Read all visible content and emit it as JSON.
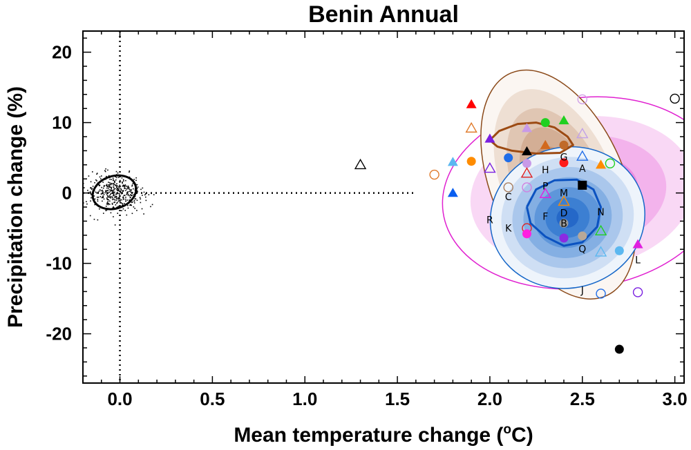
{
  "chart_data": {
    "type": "scatter",
    "title": "Benin Annual",
    "xlabel": "Mean temperature change (",
    "xlabel_sup": "o",
    "xlabel_tail": "C)",
    "ylabel": "Precipitation change (%)",
    "xlim": [
      -0.2,
      3.05
    ],
    "ylim": [
      -27,
      23
    ],
    "xticks": [
      0.0,
      0.5,
      1.0,
      1.5,
      2.0,
      2.5,
      3.0
    ],
    "xtick_labels": [
      "0.0",
      "0.5",
      "1.0",
      "1.5",
      "2.0",
      "2.5",
      "3.0"
    ],
    "yticks": [
      20,
      10,
      0,
      -10,
      -20
    ],
    "ytick_labels": [
      "20",
      "10",
      "0",
      "-10",
      "-20"
    ],
    "reference_lines": {
      "x": 0.0,
      "y": 0.0,
      "y_line_xmax": 1.6
    },
    "natural_variability": {
      "center": [
        -0.03,
        0.1
      ],
      "ellipse_semi_axes": [
        0.12,
        2.3
      ],
      "point_count": 420
    },
    "distributions": [
      {
        "name": "magenta",
        "center": [
          2.5,
          0.0
        ],
        "semi_axes": [
          0.76,
          13.5
        ],
        "tilt_deg": -8,
        "colors": [
          "#ffffff",
          "#f9d8f5",
          "#f3b3ec",
          "#ec8ce0",
          "#e468d4"
        ],
        "outline": "#e020d0"
      },
      {
        "name": "brown",
        "center": [
          2.37,
          1.2
        ],
        "semi_axes": [
          0.36,
          17.2
        ],
        "tilt_deg": -23,
        "colors": [
          "#fbf6f2",
          "#eedfd3",
          "#e0c6b3",
          "#d3ae95",
          "#c69779",
          "#b88060"
        ],
        "outline": "#8b4a1a"
      },
      {
        "name": "blue",
        "center": [
          2.42,
          -3.5
        ],
        "semi_axes": [
          0.42,
          10.0
        ],
        "tilt_deg": -14,
        "colors": [
          "#eef4fb",
          "#cfdff4",
          "#aac7ec",
          "#84afe3",
          "#5e96da",
          "#3c7fd2",
          "#2568c8"
        ],
        "outline": "#1566c8"
      }
    ],
    "contours": [
      {
        "name": "brown-core",
        "color": "#9c4a12",
        "points": [
          [
            2.0,
            7.5
          ],
          [
            2.05,
            8.8
          ],
          [
            2.15,
            9.8
          ],
          [
            2.25,
            10.0
          ],
          [
            2.35,
            9.3
          ],
          [
            2.42,
            8.0
          ],
          [
            2.45,
            6.8
          ],
          [
            2.38,
            5.7
          ],
          [
            2.25,
            5.6
          ],
          [
            2.12,
            6.0
          ],
          [
            2.04,
            6.6
          ],
          [
            2.0,
            7.5
          ]
        ]
      },
      {
        "name": "blue-core",
        "color": "#0b52c0",
        "points": [
          [
            2.2,
            -2.0
          ],
          [
            2.25,
            0.5
          ],
          [
            2.35,
            1.8
          ],
          [
            2.47,
            1.9
          ],
          [
            2.56,
            0.5
          ],
          [
            2.6,
            -2.0
          ],
          [
            2.58,
            -4.8
          ],
          [
            2.5,
            -7.0
          ],
          [
            2.4,
            -7.5
          ],
          [
            2.3,
            -6.2
          ],
          [
            2.22,
            -4.3
          ],
          [
            2.2,
            -2.0
          ]
        ]
      }
    ],
    "points": [
      {
        "x": 1.9,
        "y": 12.6,
        "shape": "triangle",
        "fill": true,
        "color": "#ff0000"
      },
      {
        "x": 1.9,
        "y": 9.2,
        "shape": "triangle",
        "fill": false,
        "color": "#e07a2a"
      },
      {
        "x": 2.0,
        "y": 7.7,
        "shape": "triangle",
        "fill": true,
        "color": "#7a1fe0"
      },
      {
        "x": 1.9,
        "y": 4.5,
        "shape": "circle",
        "fill": true,
        "color": "#ff8c00"
      },
      {
        "x": 1.8,
        "y": 4.4,
        "shape": "triangle",
        "fill": true,
        "color": "#5cb8f0"
      },
      {
        "x": 1.8,
        "y": 0.0,
        "shape": "triangle",
        "fill": true,
        "color": "#0a5ef0"
      },
      {
        "x": 1.7,
        "y": 2.6,
        "shape": "circle",
        "fill": false,
        "color": "#e07a2a"
      },
      {
        "x": 2.0,
        "y": 3.5,
        "shape": "triangle",
        "fill": false,
        "color": "#7a1fe0"
      },
      {
        "x": 2.1,
        "y": 5.0,
        "shape": "circle",
        "fill": true,
        "color": "#1f6de8"
      },
      {
        "x": 2.2,
        "y": 9.2,
        "shape": "triangle",
        "fill": true,
        "color": "#c89ae8"
      },
      {
        "x": 2.2,
        "y": 5.9,
        "shape": "triangle",
        "fill": true,
        "color": "#000000"
      },
      {
        "x": 2.2,
        "y": 4.2,
        "shape": "circle",
        "fill": true,
        "color": "#c89ae8"
      },
      {
        "x": 2.2,
        "y": 2.8,
        "shape": "triangle",
        "fill": false,
        "color": "#e02020"
      },
      {
        "x": 2.2,
        "y": 0.8,
        "shape": "circle",
        "fill": false,
        "color": "#d080e0"
      },
      {
        "x": 2.3,
        "y": 10.0,
        "shape": "circle",
        "fill": true,
        "color": "#20d020"
      },
      {
        "x": 2.3,
        "y": 6.8,
        "shape": "triangle",
        "fill": true,
        "color": "#d2691e"
      },
      {
        "x": 2.1,
        "y": 0.8,
        "shape": "circle",
        "fill": false,
        "color": "#a87e5e"
      },
      {
        "x": 2.4,
        "y": 10.3,
        "shape": "triangle",
        "fill": true,
        "color": "#20d020"
      },
      {
        "x": 2.4,
        "y": 6.8,
        "shape": "circle",
        "fill": true,
        "color": "#c06a2a"
      },
      {
        "x": 2.4,
        "y": 4.3,
        "shape": "circle",
        "fill": true,
        "color": "#ff1a1a"
      },
      {
        "x": 2.5,
        "y": 13.3,
        "shape": "circle",
        "fill": false,
        "color": "#d0a0e8"
      },
      {
        "x": 2.5,
        "y": 8.4,
        "shape": "triangle",
        "fill": false,
        "color": "#c0a0e8"
      },
      {
        "x": 2.5,
        "y": 5.2,
        "shape": "triangle",
        "fill": false,
        "color": "#1f6de8"
      },
      {
        "x": 2.5,
        "y": 1.1,
        "shape": "square",
        "fill": true,
        "color": "#000000"
      },
      {
        "x": 2.6,
        "y": 4.0,
        "shape": "triangle",
        "fill": true,
        "color": "#ff8c00"
      },
      {
        "x": 2.65,
        "y": 4.2,
        "shape": "circle",
        "fill": false,
        "color": "#20d020"
      },
      {
        "x": 2.3,
        "y": -0.1,
        "shape": "triangle",
        "fill": false,
        "color": "#e020e0"
      },
      {
        "x": 2.4,
        "y": -1.2,
        "shape": "triangle",
        "fill": false,
        "color": "#ff8c00"
      },
      {
        "x": 2.4,
        "y": -4.3,
        "shape": "circle",
        "fill": true,
        "color": "#9a9a9a"
      },
      {
        "x": 2.2,
        "y": -5.0,
        "shape": "circle",
        "fill": false,
        "color": "#e02020"
      },
      {
        "x": 2.2,
        "y": -5.8,
        "shape": "circle",
        "fill": true,
        "color": "#ff20e0"
      },
      {
        "x": 2.4,
        "y": -6.4,
        "shape": "circle",
        "fill": true,
        "color": "#8a2be2"
      },
      {
        "x": 2.5,
        "y": -6.1,
        "shape": "circle",
        "fill": true,
        "color": "#b8a898"
      },
      {
        "x": 2.6,
        "y": -5.4,
        "shape": "triangle",
        "fill": false,
        "color": "#20d020"
      },
      {
        "x": 2.6,
        "y": -8.4,
        "shape": "triangle",
        "fill": false,
        "color": "#5cb8f0"
      },
      {
        "x": 2.7,
        "y": -8.2,
        "shape": "circle",
        "fill": true,
        "color": "#5cb8f0"
      },
      {
        "x": 2.8,
        "y": -7.3,
        "shape": "triangle",
        "fill": true,
        "color": "#e020e0"
      },
      {
        "x": 2.6,
        "y": -14.3,
        "shape": "circle",
        "fill": false,
        "color": "#1f6de8"
      },
      {
        "x": 2.8,
        "y": -14.1,
        "shape": "circle",
        "fill": false,
        "color": "#7a1fe0"
      },
      {
        "x": 2.7,
        "y": -22.2,
        "shape": "circle",
        "fill": true,
        "color": "#000000"
      },
      {
        "x": 3.0,
        "y": 13.4,
        "shape": "circle",
        "fill": false,
        "color": "#000000"
      },
      {
        "x": 1.3,
        "y": 4.0,
        "shape": "triangle",
        "fill": false,
        "color": "#000000"
      }
    ],
    "point_labels": [
      {
        "text": "G",
        "x": 2.4,
        "y": 4.6
      },
      {
        "text": "A",
        "x": 2.5,
        "y": 3.0
      },
      {
        "text": "H",
        "x": 2.3,
        "y": 2.8
      },
      {
        "text": "P",
        "x": 2.3,
        "y": 0.5
      },
      {
        "text": "M",
        "x": 2.4,
        "y": -0.5
      },
      {
        "text": "C",
        "x": 2.1,
        "y": -1.0
      },
      {
        "text": "D",
        "x": 2.4,
        "y": -3.3
      },
      {
        "text": "F",
        "x": 2.3,
        "y": -3.8
      },
      {
        "text": "B",
        "x": 2.4,
        "y": -4.8
      },
      {
        "text": "N",
        "x": 2.6,
        "y": -3.2
      },
      {
        "text": "R",
        "x": 2.0,
        "y": -4.3
      },
      {
        "text": "K",
        "x": 2.1,
        "y": -5.5
      },
      {
        "text": "Q",
        "x": 2.5,
        "y": -8.4
      },
      {
        "text": "L",
        "x": 2.8,
        "y": -10.0
      },
      {
        "text": "J",
        "x": 2.5,
        "y": -14.3
      }
    ]
  }
}
